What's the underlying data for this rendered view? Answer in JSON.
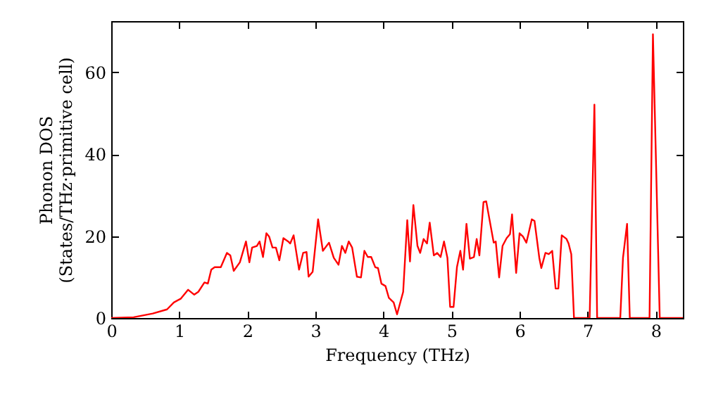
{
  "chart_data": {
    "type": "line",
    "xlabel": "Frequency (THz)",
    "ylabel": "Phonon DOS\n(States/THz·primitive cell)",
    "xlim": [
      0,
      8.4
    ],
    "ylim": [
      0,
      72.5
    ],
    "xticks": [
      0,
      1,
      2,
      3,
      4,
      5,
      6,
      7,
      8
    ],
    "yticks": [
      0,
      20,
      40,
      60
    ],
    "grid": false,
    "marker": "none",
    "line_style": "solid",
    "x": [
      0,
      0.33,
      0.61,
      0.82,
      0.92,
      1.02,
      1.13,
      1.22,
      1.28,
      1.37,
      1.42,
      1.47,
      1.52,
      1.61,
      1.7,
      1.75,
      1.8,
      1.89,
      1.98,
      2.03,
      2.07,
      2.14,
      2.18,
      2.23,
      2.28,
      2.32,
      2.37,
      2.42,
      2.47,
      2.53,
      2.6,
      2.63,
      2.68,
      2.76,
      2.82,
      2.87,
      2.9,
      2.96,
      3.04,
      3.11,
      3.2,
      3.27,
      3.34,
      3.39,
      3.44,
      3.49,
      3.54,
      3.61,
      3.67,
      3.72,
      3.77,
      3.82,
      3.88,
      3.92,
      3.97,
      4.03,
      4.08,
      4.15,
      4.2,
      4.29,
      4.35,
      4.39,
      4.44,
      4.5,
      4.54,
      4.59,
      4.64,
      4.68,
      4.74,
      4.79,
      4.84,
      4.89,
      4.94,
      4.98,
      5.03,
      5.08,
      5.13,
      5.17,
      5.22,
      5.27,
      5.33,
      5.37,
      5.41,
      5.47,
      5.51,
      5.62,
      5.65,
      5.7,
      5.75,
      5.81,
      5.86,
      5.89,
      5.95,
      6.0,
      6.05,
      6.1,
      6.13,
      6.18,
      6.22,
      6.29,
      6.32,
      6.38,
      6.43,
      6.48,
      6.53,
      6.57,
      6.62,
      6.69,
      6.72,
      6.76,
      6.8,
      7.03,
      7.1,
      7.14,
      7.48,
      7.52,
      7.58,
      7.62,
      7.91,
      7.96,
      8.06,
      8.4
    ],
    "series": [
      {
        "color": "#ff0000",
        "values": [
          0,
          0.2,
          1.1,
          2.1,
          3.8,
          4.7,
          6.9,
          5.7,
          6.4,
          8.7,
          8.4,
          11.8,
          12.4,
          12.4,
          15.9,
          15.3,
          11.5,
          13.6,
          18.7,
          13.6,
          17.2,
          17.6,
          18.7,
          14.9,
          20.7,
          19.9,
          17.2,
          17.2,
          14.1,
          19.5,
          18.7,
          18.2,
          20.2,
          11.8,
          15.9,
          16.1,
          10.1,
          11.3,
          24.1,
          16.4,
          18.4,
          14.7,
          13.0,
          17.6,
          15.9,
          18.7,
          17.2,
          10.1,
          9.9,
          16.4,
          14.9,
          14.9,
          12.4,
          12.2,
          8.4,
          7.8,
          4.9,
          3.8,
          0.9,
          6.4,
          23.9,
          13.8,
          27.6,
          17.6,
          15.9,
          19.3,
          18.2,
          23.3,
          15.3,
          15.9,
          14.9,
          18.7,
          14.7,
          2.7,
          2.7,
          12.4,
          16.4,
          11.8,
          23.0,
          14.5,
          14.9,
          19.3,
          15.3,
          28.3,
          28.5,
          18.4,
          18.7,
          9.9,
          17.6,
          19.5,
          20.5,
          25.3,
          11.0,
          20.7,
          19.9,
          18.4,
          20.5,
          24.1,
          23.7,
          14.7,
          12.2,
          15.9,
          15.6,
          16.4,
          7.2,
          7.2,
          20.2,
          19.3,
          18.2,
          15.6,
          0,
          0,
          52.1,
          0,
          0,
          14.7,
          23.0,
          0,
          0,
          69.3,
          0,
          0
        ]
      }
    ]
  }
}
